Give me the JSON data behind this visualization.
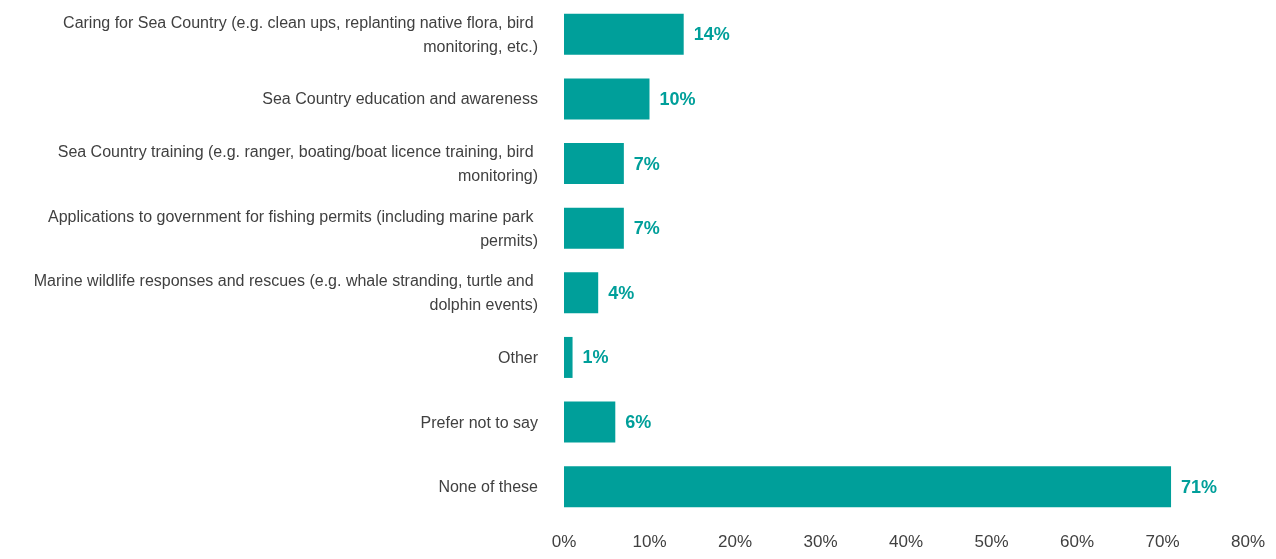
{
  "chart_data": {
    "type": "bar",
    "orientation": "horizontal",
    "categories": [
      "Caring for Sea Country (e.g. clean ups, replanting native flora, bird monitoring, etc.)",
      "Sea Country education and awareness",
      "Sea Country training (e.g. ranger, boating/boat licence training, bird monitoring)",
      "Applications to government for fishing permits (including marine park permits)",
      "Marine wildlife responses and rescues (e.g. whale stranding, turtle and dolphin events)",
      "Other",
      "Prefer not to say",
      "None of these"
    ],
    "values": [
      14,
      10,
      7,
      7,
      4,
      1,
      6,
      71
    ],
    "value_labels": [
      "14%",
      "10%",
      "7%",
      "7%",
      "4%",
      "1%",
      "6%",
      "71%"
    ],
    "color": "#009f9a",
    "xlim": [
      0,
      80
    ],
    "xticks": [
      {
        "value": 0,
        "label": "0%"
      },
      {
        "value": 10,
        "label": "10%"
      },
      {
        "value": 20,
        "label": "20%"
      },
      {
        "value": 30,
        "label": "30%"
      },
      {
        "value": 40,
        "label": "40%"
      },
      {
        "value": 50,
        "label": "50%"
      },
      {
        "value": 60,
        "label": "60%"
      },
      {
        "value": 70,
        "label": "70%"
      },
      {
        "value": 80,
        "label": "80%"
      }
    ],
    "grid": false
  }
}
